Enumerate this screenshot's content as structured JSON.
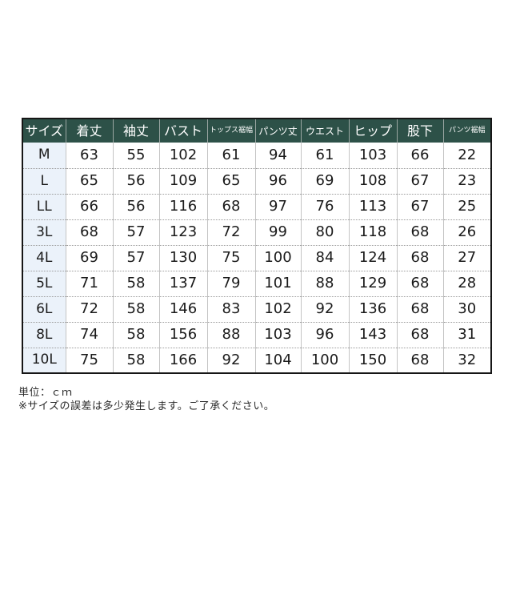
{
  "chart_data": {
    "type": "table",
    "title": "",
    "unit": "cm",
    "columns": [
      {
        "label": "サイズ",
        "emphasis": "large"
      },
      {
        "label": "着丈",
        "emphasis": "large"
      },
      {
        "label": "袖丈",
        "emphasis": "large"
      },
      {
        "label": "バスト",
        "emphasis": "large"
      },
      {
        "label": "トップス裾幅",
        "emphasis": "small"
      },
      {
        "label": "パンツ丈",
        "emphasis": "medium"
      },
      {
        "label": "ウエスト",
        "emphasis": "medium"
      },
      {
        "label": "ヒップ",
        "emphasis": "large"
      },
      {
        "label": "股下",
        "emphasis": "large"
      },
      {
        "label": "パンツ裾幅",
        "emphasis": "small"
      }
    ],
    "rows": [
      [
        "M",
        63,
        55,
        102,
        61,
        94,
        61,
        103,
        66,
        22
      ],
      [
        "L",
        65,
        56,
        109,
        65,
        96,
        69,
        108,
        67,
        23
      ],
      [
        "LL",
        66,
        56,
        116,
        68,
        97,
        76,
        113,
        67,
        25
      ],
      [
        "3L",
        68,
        57,
        123,
        72,
        99,
        80,
        118,
        68,
        26
      ],
      [
        "4L",
        69,
        57,
        130,
        75,
        100,
        84,
        124,
        68,
        27
      ],
      [
        "5L",
        71,
        58,
        137,
        79,
        101,
        88,
        129,
        68,
        28
      ],
      [
        "6L",
        72,
        58,
        146,
        83,
        102,
        92,
        136,
        68,
        30
      ],
      [
        "8L",
        74,
        58,
        156,
        88,
        103,
        96,
        143,
        68,
        31
      ],
      [
        "10L",
        75,
        58,
        166,
        92,
        104,
        100,
        150,
        68,
        32
      ]
    ]
  },
  "notes": {
    "unit": "単位：ｃｍ",
    "disclaimer": "※サイズの誤差は多少発生します。ご了承ください。"
  },
  "colors": {
    "header_bg": "#2d5148",
    "header_text": "#ffffff",
    "size_column_bg": "#ebf2fa",
    "outer_border": "#161616"
  }
}
